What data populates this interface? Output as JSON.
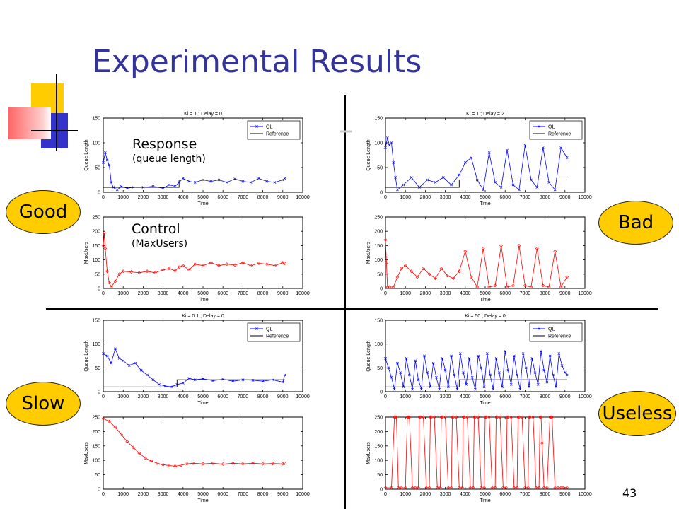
{
  "slide": {
    "title": "Experimental Results",
    "number": "43",
    "labels": {
      "good": "Good",
      "bad": "Bad",
      "slow": "Slow",
      "useless": "Useless"
    },
    "annotations": {
      "response": "Response",
      "response_sub": "(queue length)",
      "control": "Control",
      "control_sub": "(MaxUsers)"
    }
  },
  "colors": {
    "title": "#333399",
    "label_fill": "#ffcc00",
    "ql_series": "#0000ff",
    "maxusers_series": "#ff0000",
    "reference": "#000000"
  },
  "chart_data": [
    {
      "type": "line",
      "panel": "top-left-response",
      "title": "Ki = 1 ; Delay = 0",
      "xlabel": "Time",
      "ylabel": "Queue Length",
      "xlim": [
        0,
        10000
      ],
      "ylim": [
        0,
        150
      ],
      "xticks": [
        0,
        1000,
        2000,
        3000,
        4000,
        5000,
        6000,
        7000,
        8000,
        9000,
        10000
      ],
      "yticks": [
        0,
        50,
        100,
        150
      ],
      "legend": [
        "QL",
        "Reference"
      ],
      "legend_position": "top-right",
      "series": [
        {
          "name": "QL",
          "x": [
            0,
            100,
            200,
            300,
            400,
            500,
            700,
            900,
            1200,
            1500,
            2000,
            2500,
            3000,
            3300,
            3600,
            3800,
            4000,
            4300,
            4600,
            5000,
            5400,
            5800,
            6200,
            6600,
            7000,
            7400,
            7800,
            8200,
            8600,
            9000,
            9100
          ],
          "y": [
            60,
            80,
            65,
            55,
            20,
            10,
            5,
            12,
            8,
            10,
            10,
            12,
            8,
            15,
            12,
            20,
            28,
            22,
            20,
            25,
            22,
            25,
            20,
            27,
            22,
            20,
            28,
            22,
            20,
            25,
            28
          ]
        },
        {
          "name": "Reference",
          "x": [
            0,
            3800,
            3800,
            9100
          ],
          "y": [
            10,
            10,
            25,
            25
          ]
        }
      ]
    },
    {
      "type": "line",
      "panel": "top-left-control",
      "title": "",
      "xlabel": "Time",
      "ylabel": "MaxUsers",
      "xlim": [
        0,
        10000
      ],
      "ylim": [
        0,
        250
      ],
      "xticks": [
        0,
        1000,
        2000,
        3000,
        4000,
        5000,
        6000,
        7000,
        8000,
        9000,
        10000
      ],
      "yticks": [
        0,
        50,
        100,
        150,
        200,
        250
      ],
      "series": [
        {
          "name": "MaxUsers",
          "x": [
            0,
            50,
            100,
            200,
            300,
            400,
            600,
            800,
            1000,
            1400,
            1800,
            2200,
            2600,
            3000,
            3300,
            3600,
            3800,
            4000,
            4300,
            4600,
            5000,
            5400,
            5800,
            6200,
            6600,
            7000,
            7400,
            7800,
            8200,
            8600,
            9000,
            9100
          ],
          "y": [
            150,
            195,
            140,
            60,
            20,
            5,
            25,
            50,
            60,
            58,
            55,
            60,
            55,
            65,
            70,
            62,
            75,
            80,
            65,
            85,
            80,
            90,
            80,
            85,
            82,
            90,
            80,
            88,
            85,
            80,
            90,
            88
          ]
        }
      ]
    },
    {
      "type": "line",
      "panel": "top-right-response",
      "title": "Ki = 1 ; Delay = 2",
      "xlabel": "Time",
      "ylabel": "Queue Length",
      "xlim": [
        0,
        10000
      ],
      "ylim": [
        0,
        150
      ],
      "xticks": [
        0,
        1000,
        2000,
        3000,
        4000,
        5000,
        6000,
        7000,
        8000,
        9000,
        10000
      ],
      "yticks": [
        0,
        50,
        100,
        150
      ],
      "legend": [
        "QL",
        "Reference"
      ],
      "legend_position": "top-right",
      "series": [
        {
          "name": "QL",
          "x": [
            0,
            100,
            200,
            300,
            400,
            500,
            600,
            900,
            1300,
            1700,
            2100,
            2500,
            2900,
            3300,
            3700,
            4000,
            4300,
            4600,
            4900,
            5200,
            5500,
            5800,
            6100,
            6400,
            6700,
            7000,
            7300,
            7600,
            7900,
            8200,
            8500,
            8800,
            9100
          ],
          "y": [
            90,
            110,
            95,
            100,
            60,
            30,
            5,
            15,
            30,
            10,
            25,
            20,
            30,
            15,
            35,
            60,
            70,
            25,
            5,
            80,
            20,
            10,
            85,
            15,
            5,
            95,
            25,
            10,
            90,
            20,
            5,
            90,
            70
          ]
        },
        {
          "name": "Reference",
          "x": [
            0,
            3700,
            3700,
            9100
          ],
          "y": [
            10,
            10,
            25,
            25
          ]
        }
      ]
    },
    {
      "type": "line",
      "panel": "top-right-control",
      "title": "",
      "xlabel": "Time",
      "ylabel": "MaxUsers",
      "xlim": [
        0,
        10000
      ],
      "ylim": [
        0,
        250
      ],
      "xticks": [
        0,
        1000,
        2000,
        3000,
        4000,
        5000,
        6000,
        7000,
        8000,
        9000,
        10000
      ],
      "yticks": [
        0,
        50,
        100,
        150,
        200,
        250
      ],
      "series": [
        {
          "name": "MaxUsers",
          "x": [
            0,
            50,
            100,
            200,
            400,
            600,
            800,
            1000,
            1300,
            1600,
            1900,
            2200,
            2500,
            2800,
            3100,
            3400,
            3700,
            4000,
            4300,
            4600,
            4900,
            5200,
            5500,
            5800,
            6100,
            6400,
            6700,
            7000,
            7300,
            7600,
            7900,
            8200,
            8500,
            8800,
            9100
          ],
          "y": [
            170,
            90,
            5,
            5,
            5,
            40,
            70,
            80,
            60,
            40,
            70,
            50,
            35,
            70,
            45,
            35,
            60,
            130,
            40,
            5,
            140,
            5,
            10,
            150,
            5,
            10,
            150,
            10,
            5,
            140,
            10,
            5,
            130,
            5,
            40
          ]
        }
      ]
    },
    {
      "type": "line",
      "panel": "bottom-left-response",
      "title": "Ki = 0.1 ; Delay = 0",
      "xlabel": "Time",
      "ylabel": "Queue Length",
      "xlim": [
        0,
        10000
      ],
      "ylim": [
        0,
        150
      ],
      "xticks": [
        0,
        1000,
        2000,
        3000,
        4000,
        5000,
        6000,
        7000,
        8000,
        9000,
        10000
      ],
      "yticks": [
        0,
        50,
        100,
        150
      ],
      "legend": [
        "QL",
        "Reference"
      ],
      "legend_position": "top-right",
      "series": [
        {
          "name": "QL",
          "x": [
            0,
            200,
            400,
            600,
            800,
            1000,
            1300,
            1600,
            1900,
            2200,
            2500,
            2800,
            3100,
            3400,
            3700,
            4000,
            4300,
            4600,
            5000,
            5500,
            6000,
            6500,
            7000,
            7500,
            8000,
            8500,
            9000,
            9100
          ],
          "y": [
            80,
            75,
            60,
            90,
            70,
            65,
            55,
            60,
            45,
            35,
            25,
            15,
            12,
            10,
            15,
            18,
            28,
            25,
            27,
            23,
            26,
            22,
            25,
            24,
            22,
            25,
            20,
            35
          ]
        },
        {
          "name": "Reference",
          "x": [
            0,
            3700,
            3700,
            9100
          ],
          "y": [
            10,
            10,
            25,
            25
          ]
        }
      ]
    },
    {
      "type": "line",
      "panel": "bottom-left-control",
      "title": "",
      "xlabel": "Time",
      "ylabel": "MaxUsers",
      "xlim": [
        0,
        10000
      ],
      "ylim": [
        0,
        250
      ],
      "xticks": [
        0,
        1000,
        2000,
        3000,
        4000,
        5000,
        6000,
        7000,
        8000,
        9000,
        10000
      ],
      "yticks": [
        0,
        50,
        100,
        150,
        200,
        250
      ],
      "series": [
        {
          "name": "MaxUsers",
          "x": [
            0,
            300,
            600,
            900,
            1200,
            1500,
            1800,
            2100,
            2400,
            2700,
            3000,
            3300,
            3600,
            3900,
            4200,
            4500,
            5000,
            5500,
            6000,
            6500,
            7000,
            7500,
            8000,
            8500,
            9000,
            9100
          ],
          "y": [
            245,
            235,
            215,
            190,
            165,
            145,
            125,
            108,
            98,
            90,
            85,
            82,
            80,
            83,
            88,
            90,
            88,
            90,
            87,
            90,
            88,
            90,
            88,
            89,
            88,
            90
          ]
        }
      ]
    },
    {
      "type": "line",
      "panel": "bottom-right-response",
      "title": "Ki = 50 ; Delay = 0",
      "xlabel": "Time",
      "ylabel": "Queue Length",
      "xlim": [
        0,
        10000
      ],
      "ylim": [
        0,
        150
      ],
      "xticks": [
        0,
        1000,
        2000,
        3000,
        4000,
        5000,
        6000,
        7000,
        8000,
        9000,
        10000
      ],
      "yticks": [
        0,
        50,
        100,
        150
      ],
      "legend": [
        "QL",
        "Reference"
      ],
      "legend_position": "top-right",
      "series": [
        {
          "name": "QL",
          "x": [
            0,
            150,
            300,
            450,
            600,
            750,
            900,
            1050,
            1200,
            1350,
            1500,
            1650,
            1800,
            1950,
            2100,
            2250,
            2400,
            2550,
            2700,
            2850,
            3000,
            3150,
            3300,
            3450,
            3600,
            3750,
            3900,
            4050,
            4200,
            4350,
            4500,
            4650,
            4800,
            4950,
            5100,
            5250,
            5400,
            5550,
            5700,
            5850,
            6000,
            6150,
            6300,
            6450,
            6600,
            6750,
            6900,
            7050,
            7200,
            7350,
            7500,
            7650,
            7800,
            7950,
            8100,
            8250,
            8400,
            8550,
            8700,
            8850,
            9000,
            9100
          ],
          "y": [
            70,
            50,
            30,
            5,
            60,
            40,
            10,
            70,
            35,
            5,
            65,
            25,
            5,
            75,
            40,
            10,
            60,
            30,
            5,
            70,
            45,
            10,
            75,
            35,
            5,
            80,
            40,
            15,
            70,
            30,
            5,
            75,
            50,
            10,
            80,
            35,
            5,
            70,
            40,
            10,
            85,
            45,
            15,
            75,
            35,
            5,
            80,
            50,
            10,
            70,
            40,
            15,
            85,
            45,
            20,
            75,
            35,
            10,
            80,
            55,
            40,
            35
          ]
        },
        {
          "name": "Reference",
          "x": [
            0,
            3700,
            3700,
            9100
          ],
          "y": [
            10,
            10,
            25,
            25
          ]
        }
      ]
    },
    {
      "type": "line",
      "panel": "bottom-right-control",
      "title": "",
      "xlabel": "Time",
      "ylabel": "MaxUsers",
      "xlim": [
        0,
        10000
      ],
      "ylim": [
        0,
        250
      ],
      "xticks": [
        0,
        1000,
        2000,
        3000,
        4000,
        5000,
        6000,
        7000,
        8000,
        9000,
        10000
      ],
      "yticks": [
        0,
        50,
        100,
        150,
        200,
        250
      ],
      "series": [
        {
          "name": "MaxUsers",
          "x": [
            0,
            300,
            450,
            500,
            550,
            650,
            800,
            1000,
            1100,
            1150,
            1200,
            1350,
            1500,
            1650,
            1700,
            1750,
            1900,
            2050,
            2200,
            2250,
            2300,
            2450,
            2600,
            2750,
            2800,
            2850,
            3000,
            3150,
            3300,
            3350,
            3400,
            3550,
            3700,
            3850,
            3900,
            3950,
            4100,
            4250,
            4400,
            4450,
            4500,
            4650,
            4800,
            4950,
            5000,
            5050,
            5200,
            5350,
            5500,
            5550,
            5600,
            5750,
            5900,
            6050,
            6100,
            6150,
            6300,
            6450,
            6600,
            6650,
            6700,
            6850,
            7000,
            7150,
            7200,
            7250,
            7400,
            7550,
            7700,
            7750,
            7800,
            7850,
            7950,
            8100,
            8250,
            8300,
            8350,
            8500,
            8650,
            8800,
            8900,
            9100
          ],
          "y": [
            5,
            5,
            250,
            250,
            250,
            5,
            5,
            5,
            250,
            250,
            250,
            5,
            5,
            5,
            250,
            250,
            250,
            5,
            5,
            250,
            250,
            250,
            5,
            5,
            250,
            250,
            250,
            5,
            5,
            250,
            250,
            250,
            5,
            5,
            250,
            250,
            250,
            5,
            5,
            250,
            250,
            250,
            5,
            5,
            250,
            250,
            250,
            5,
            5,
            250,
            250,
            250,
            5,
            5,
            250,
            250,
            250,
            5,
            5,
            250,
            250,
            250,
            5,
            5,
            250,
            250,
            250,
            5,
            5,
            250,
            250,
            160,
            5,
            5,
            250,
            250,
            250,
            5,
            5,
            5,
            5,
            5
          ]
        }
      ]
    }
  ]
}
